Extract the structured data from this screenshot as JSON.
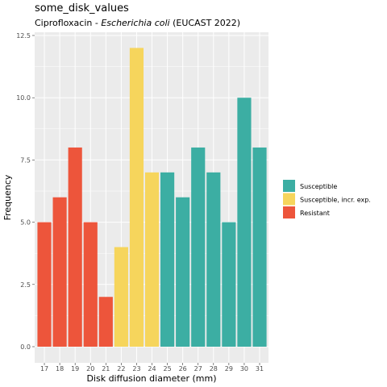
{
  "chart_data": {
    "type": "bar",
    "title": "some_disk_values",
    "subtitle": {
      "prefix": "Ciprofloxacin - ",
      "organism": "Escherichia coli",
      "suffix": " (EUCAST 2022)"
    },
    "xlabel": "Disk diffusion diameter (mm)",
    "ylabel": "Frequency",
    "ylim": [
      0,
      12.5
    ],
    "yticks": [
      "0.0",
      "2.5",
      "5.0",
      "7.5",
      "10.0",
      "12.5"
    ],
    "grid": true,
    "legend_position": "right",
    "categories": [
      "17",
      "18",
      "19",
      "20",
      "21",
      "22",
      "23",
      "24",
      "25",
      "26",
      "27",
      "28",
      "29",
      "30",
      "31"
    ],
    "values": [
      5,
      6,
      8,
      5,
      2,
      4,
      12,
      7,
      7,
      6,
      8,
      7,
      5,
      10,
      8
    ],
    "groups": [
      "R",
      "R",
      "R",
      "R",
      "R",
      "I",
      "I",
      "I",
      "S",
      "S",
      "S",
      "S",
      "S",
      "S",
      "S"
    ],
    "legend": [
      {
        "key": "S",
        "label": "Susceptible",
        "color": "#3CAEA3"
      },
      {
        "key": "I",
        "label": "Susceptible, incr. exp.",
        "color": "#F6D55C"
      },
      {
        "key": "R",
        "label": "Resistant",
        "color": "#ED553B"
      }
    ]
  }
}
